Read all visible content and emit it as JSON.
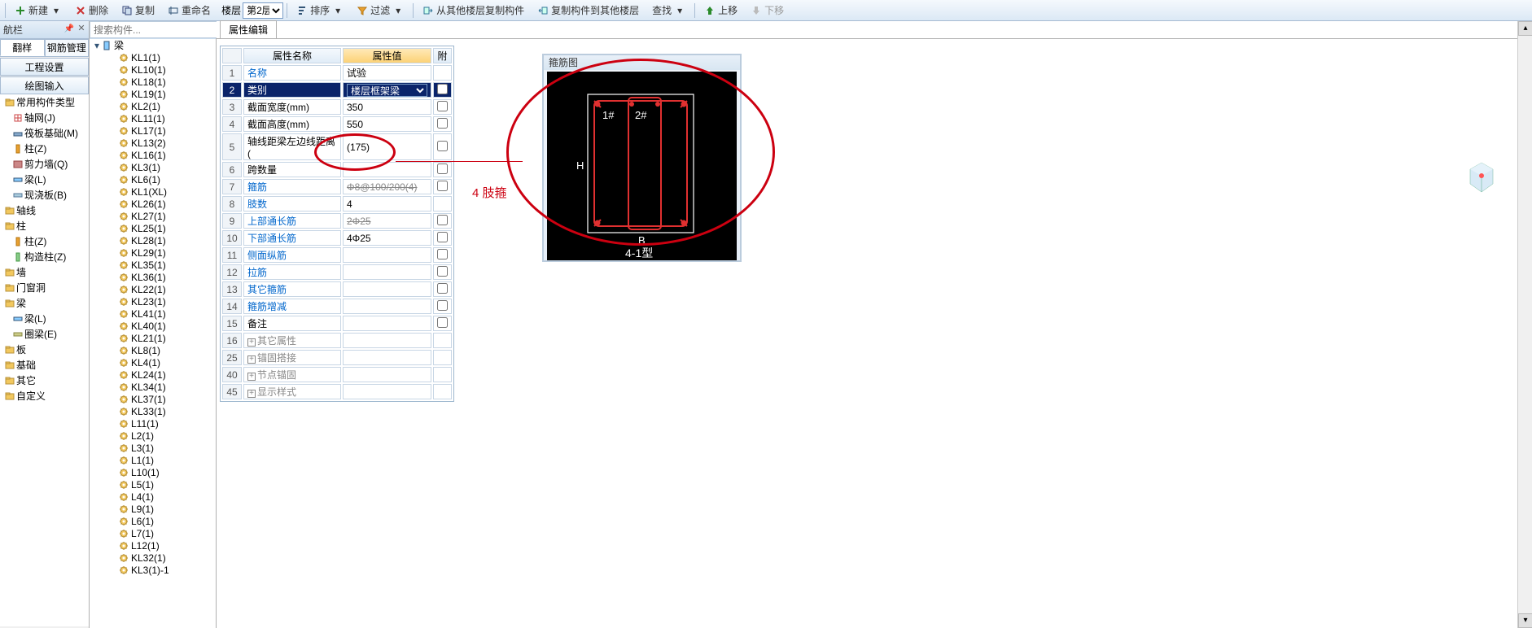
{
  "toolbar": {
    "new": "新建",
    "delete": "删除",
    "copy": "复制",
    "rename": "重命名",
    "floor_label": "楼层",
    "floor_value": "第2层",
    "sort": "排序",
    "filter": "过滤",
    "copy_from": "从其他楼层复制构件",
    "copy_to": "复制构件到其他楼层",
    "find": "查找",
    "up": "上移",
    "down": "下移"
  },
  "left_header": "航栏",
  "tabs": {
    "t1": "翻样",
    "t2": "钢筋管理"
  },
  "nav_btns": {
    "b1": "工程设置",
    "b2": "绘图输入"
  },
  "nav_tree": [
    {
      "label": "常用构件类型",
      "icon": "folder"
    },
    {
      "label": "轴网(J)",
      "icon": "grid",
      "lvl": 1
    },
    {
      "label": "筏板基础(M)",
      "icon": "raft",
      "lvl": 1
    },
    {
      "label": "柱(Z)",
      "icon": "col",
      "lvl": 1
    },
    {
      "label": "剪力墙(Q)",
      "icon": "wall",
      "lvl": 1
    },
    {
      "label": "梁(L)",
      "icon": "beam",
      "lvl": 1
    },
    {
      "label": "现浇板(B)",
      "icon": "slab",
      "lvl": 1
    },
    {
      "label": "轴线",
      "icon": "folder"
    },
    {
      "label": "柱",
      "icon": "folder"
    },
    {
      "label": "柱(Z)",
      "icon": "col",
      "lvl": 1
    },
    {
      "label": "构造柱(Z)",
      "icon": "col2",
      "lvl": 1
    },
    {
      "label": "墙",
      "icon": "folder"
    },
    {
      "label": "门窗洞",
      "icon": "folder"
    },
    {
      "label": "梁",
      "icon": "folder"
    },
    {
      "label": "梁(L)",
      "icon": "beam",
      "lvl": 1
    },
    {
      "label": "圈梁(E)",
      "icon": "ring",
      "lvl": 1
    },
    {
      "label": "板",
      "icon": "folder"
    },
    {
      "label": "基础",
      "icon": "folder"
    },
    {
      "label": "其它",
      "icon": "folder"
    },
    {
      "label": "自定义",
      "icon": "folder"
    }
  ],
  "search_placeholder": "搜索构件...",
  "comp_root": "梁",
  "comp_list": [
    "KL1(1)",
    "KL10(1)",
    "KL18(1)",
    "KL19(1)",
    "KL2(1)",
    "KL11(1)",
    "KL17(1)",
    "KL13(2)",
    "KL16(1)",
    "KL3(1)",
    "KL6(1)",
    "KL1(XL)",
    "KL26(1)",
    "KL27(1)",
    "KL25(1)",
    "KL28(1)",
    "KL29(1)",
    "KL35(1)",
    "KL36(1)",
    "KL22(1)",
    "KL23(1)",
    "KL41(1)",
    "KL40(1)",
    "KL21(1)",
    "KL8(1)",
    "KL4(1)",
    "KL24(1)",
    "KL34(1)",
    "KL37(1)",
    "KL33(1)",
    "L11(1)",
    "L2(1)",
    "L3(1)",
    "L1(1)",
    "L10(1)",
    "L5(1)",
    "L4(1)",
    "L9(1)",
    "L6(1)",
    "L7(1)",
    "L12(1)",
    "KL32(1)",
    "KL3(1)-1"
  ],
  "prop_tab": "属性编辑",
  "prop_headers": {
    "name": "属性名称",
    "value": "属性值",
    "ext": "附"
  },
  "prop_rows": [
    {
      "n": "1",
      "name": "名称",
      "val": "试验",
      "chk": false,
      "link": true
    },
    {
      "n": "2",
      "name": "类别",
      "val": "楼层框架梁",
      "chk": true,
      "sel": true,
      "dropdown": true
    },
    {
      "n": "3",
      "name": "截面宽度(mm)",
      "val": "350",
      "chk": true
    },
    {
      "n": "4",
      "name": "截面高度(mm)",
      "val": "550",
      "chk": true
    },
    {
      "n": "5",
      "name": "轴线距梁左边线距离(",
      "val": "(175)",
      "chk": true
    },
    {
      "n": "6",
      "name": "跨数量",
      "val": "",
      "chk": true
    },
    {
      "n": "7",
      "name": "箍筋",
      "val": "Φ8@100/200(4)",
      "chk": true,
      "link": true,
      "strike": true
    },
    {
      "n": "8",
      "name": "肢数",
      "val": "4",
      "chk": false,
      "link": true
    },
    {
      "n": "9",
      "name": "上部通长筋",
      "val": "2Φ25",
      "chk": true,
      "link": true,
      "strike": true
    },
    {
      "n": "10",
      "name": "下部通长筋",
      "val": "4Φ25",
      "chk": true,
      "link": true
    },
    {
      "n": "11",
      "name": "侧面纵筋",
      "val": "",
      "chk": true,
      "link": true
    },
    {
      "n": "12",
      "name": "拉筋",
      "val": "",
      "chk": true,
      "link": true
    },
    {
      "n": "13",
      "name": "其它箍筋",
      "val": "",
      "chk": true,
      "link": true
    },
    {
      "n": "14",
      "name": "箍筋增减",
      "val": "",
      "chk": true,
      "link": true
    },
    {
      "n": "15",
      "name": "备注",
      "val": "",
      "chk": true
    },
    {
      "n": "16",
      "name": "其它属性",
      "exp": true,
      "gray": true
    },
    {
      "n": "25",
      "name": "锚固搭接",
      "exp": true,
      "gray": true
    },
    {
      "n": "40",
      "name": "节点锚固",
      "exp": true,
      "gray": true
    },
    {
      "n": "45",
      "name": "显示样式",
      "exp": true,
      "gray": true
    }
  ],
  "diagram": {
    "title": "箍筋图",
    "labels": {
      "l1": "1#",
      "l2": "2#",
      "H": "H",
      "B": "B",
      "bottom": "4-1型"
    },
    "colors": {
      "bg": "#000000",
      "outer": "#ffffff",
      "red": "#e03030",
      "text": "#ffffff"
    }
  },
  "annotation_text": "4 肢箍"
}
